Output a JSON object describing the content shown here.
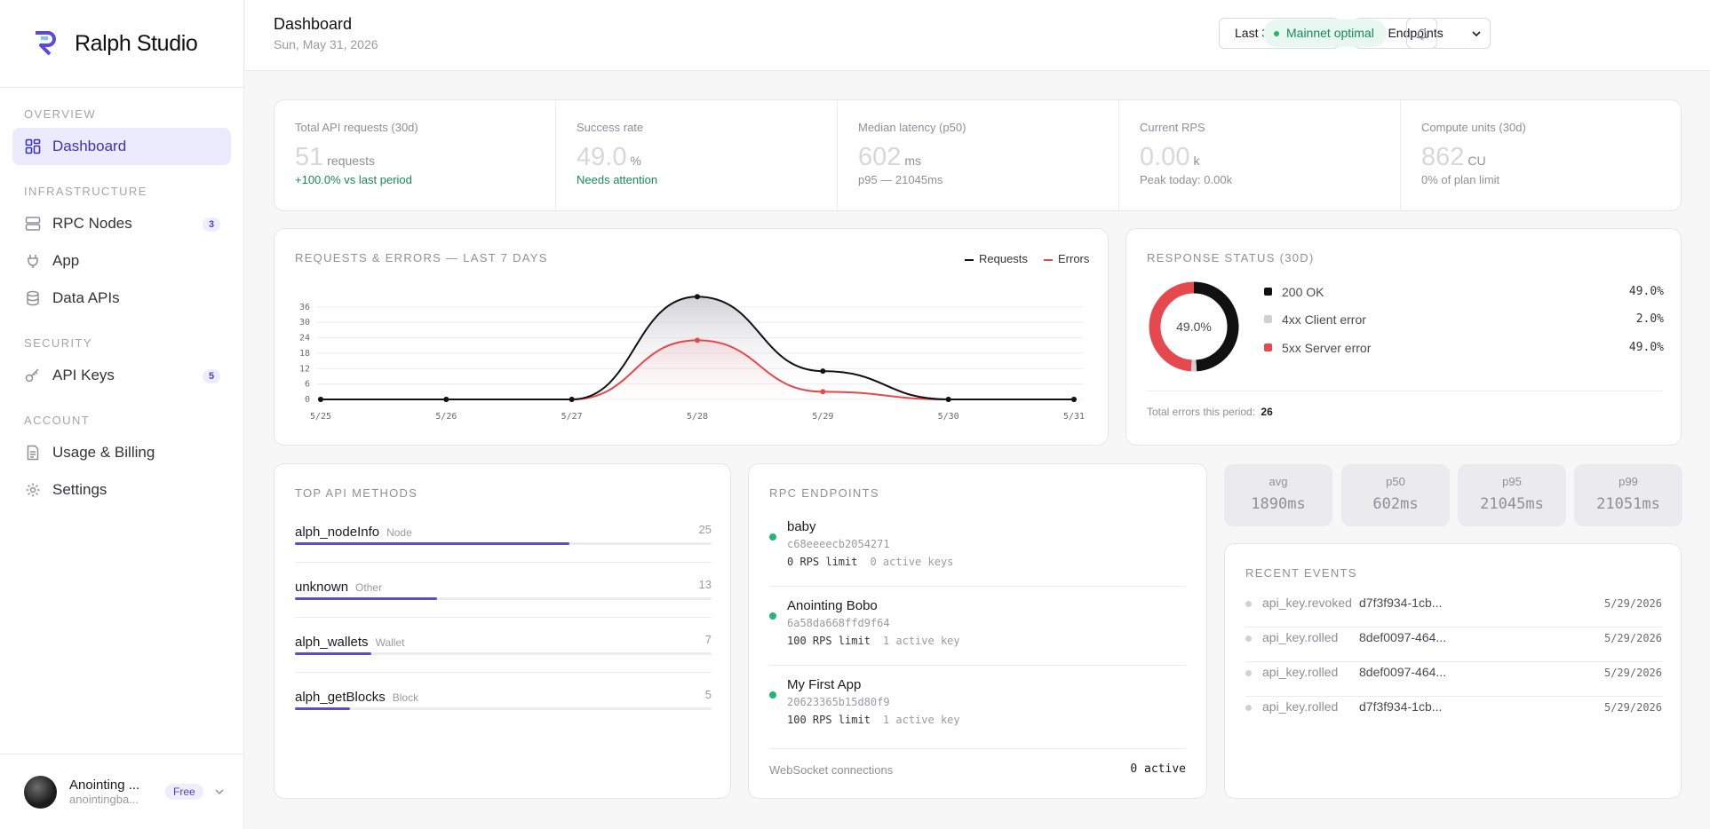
{
  "brand": {
    "name": "Ralph Studio"
  },
  "sidebar": {
    "sections": [
      {
        "title": "Overview",
        "items": [
          {
            "label": "Dashboard",
            "icon": "grid-icon",
            "active": true
          }
        ]
      },
      {
        "title": "Infrastructure",
        "items": [
          {
            "label": "RPC Nodes",
            "icon": "server-icon",
            "badge": "3"
          },
          {
            "label": "App",
            "icon": "plug-icon"
          },
          {
            "label": "Data APIs",
            "icon": "database-icon"
          }
        ]
      },
      {
        "title": "Security",
        "items": [
          {
            "label": "API Keys",
            "icon": "key-icon",
            "badge": "5"
          }
        ]
      },
      {
        "title": "Account",
        "items": [
          {
            "label": "Usage & Billing",
            "icon": "document-icon"
          },
          {
            "label": "Settings",
            "icon": "gear-icon"
          }
        ]
      }
    ],
    "user": {
      "name": "Anointing ...",
      "handle": "anointingba...",
      "plan": "Free"
    }
  },
  "header": {
    "title": "Dashboard",
    "date": "Sun, May 31, 2026",
    "range_select": "Last 30 days",
    "endpoint_select": "All Endpoints",
    "status": "Mainnet optimal"
  },
  "kpis": [
    {
      "label": "Total API requests (30d)",
      "value": "51",
      "unit": "requests",
      "sub": "+100.0% vs last period",
      "sub_good": true
    },
    {
      "label": "Success rate",
      "value": "49.0",
      "unit": "%",
      "sub": "Needs attention",
      "sub_good": true
    },
    {
      "label": "Median latency (p50)",
      "value": "602",
      "unit": "ms",
      "sub": "p95 — 21045ms",
      "sub_good": false
    },
    {
      "label": "Current RPS",
      "value": "0.00",
      "unit": "k",
      "sub": "Peak today: 0.00k",
      "sub_good": false
    },
    {
      "label": "Compute units (30d)",
      "value": "862",
      "unit": "CU",
      "sub": "0% of plan limit",
      "sub_good": false
    }
  ],
  "chart_data": [
    {
      "type": "area",
      "title": "Requests & Errors — Last 7 Days",
      "categories": [
        "5/25",
        "5/26",
        "5/27",
        "5/28",
        "5/29",
        "5/30",
        "5/31"
      ],
      "yticks": [
        0,
        6,
        12,
        18,
        24,
        30,
        36
      ],
      "ylim": [
        0,
        38
      ],
      "series": [
        {
          "name": "Requests",
          "color": "#111111",
          "values": [
            0,
            0,
            0,
            40,
            11,
            0,
            0
          ]
        },
        {
          "name": "Errors",
          "color": "#e5484d",
          "values": [
            0,
            0,
            0,
            23,
            3,
            0,
            0
          ]
        }
      ],
      "legend": "top-right",
      "grid": true
    },
    {
      "type": "pie",
      "title": "Response status (30d)",
      "center_label": "49.0%",
      "slices": [
        {
          "label": "200 OK",
          "value": 49.0,
          "display": "49.0%",
          "color": "#111111"
        },
        {
          "label": "4xx Client error",
          "value": 2.0,
          "display": "2.0%",
          "color": "#cfcfd4"
        },
        {
          "label": "5xx Server error",
          "value": 49.0,
          "display": "49.0%",
          "color": "#e5484d"
        }
      ],
      "footer_label": "Total errors this period:",
      "footer_value": "26"
    },
    {
      "type": "bar",
      "title": "Top API methods",
      "max": 38,
      "items": [
        {
          "name": "alph_nodeInfo",
          "category": "Node",
          "count": 25
        },
        {
          "name": "unknown",
          "category": "Other",
          "count": 13
        },
        {
          "name": "alph_wallets",
          "category": "Wallet",
          "count": 7
        },
        {
          "name": "alph_getBlocks",
          "category": "Block",
          "count": 5
        }
      ]
    }
  ],
  "endpoints": {
    "title": "RPC Endpoints",
    "items": [
      {
        "name": "baby",
        "id": "c68eeeecb2054271",
        "rps": "0 RPS limit",
        "keys": "0 active keys"
      },
      {
        "name": "Anointing Bobo",
        "id": "6a58da668ffd9f64",
        "rps": "100 RPS limit",
        "keys": "1 active key"
      },
      {
        "name": "My First App",
        "id": "20623365b15d80f9",
        "rps": "100 RPS limit",
        "keys": "1 active key"
      }
    ],
    "ws_label": "WebSocket connections",
    "ws_value": "0 active"
  },
  "latency": [
    {
      "label": "avg",
      "value": "1890ms"
    },
    {
      "label": "p50",
      "value": "602ms"
    },
    {
      "label": "p95",
      "value": "21045ms"
    },
    {
      "label": "p99",
      "value": "21051ms"
    }
  ],
  "events": {
    "title": "Recent events",
    "items": [
      {
        "type": "api_key.revoked",
        "key": "d7f3f934-1cb...",
        "date": "5/29/2026"
      },
      {
        "type": "api_key.rolled",
        "key": "8def0097-464...",
        "date": "5/29/2026"
      },
      {
        "type": "api_key.rolled",
        "key": "8def0097-464...",
        "date": "5/29/2026"
      },
      {
        "type": "api_key.rolled",
        "key": "d7f3f934-1cb...",
        "date": "5/29/2026"
      }
    ]
  }
}
